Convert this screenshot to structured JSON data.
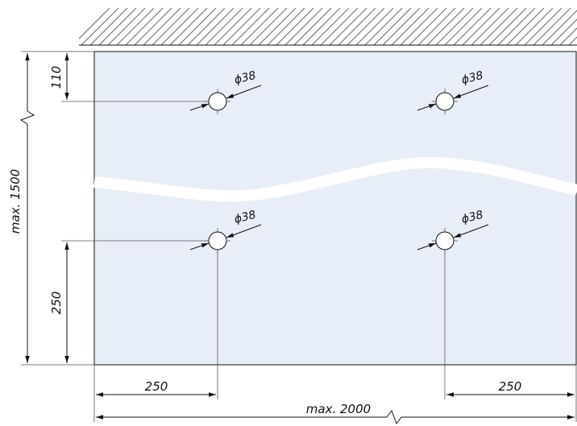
{
  "colors": {
    "panel_fill": "#e8eef8",
    "line": "#111111",
    "background": "#ffffff"
  },
  "dimensions": {
    "hole_diameter": "ϕ38",
    "hole_offset_top": "110",
    "hole_offset_bottom": "250",
    "hole_offset_left": "250",
    "hole_offset_right": "250",
    "max_height": "max. 1500",
    "max_width": "max. 2000"
  },
  "holes": [
    {
      "label": "ϕ38"
    },
    {
      "label": "ϕ38"
    },
    {
      "label": "ϕ38"
    },
    {
      "label": "ϕ38"
    }
  ]
}
